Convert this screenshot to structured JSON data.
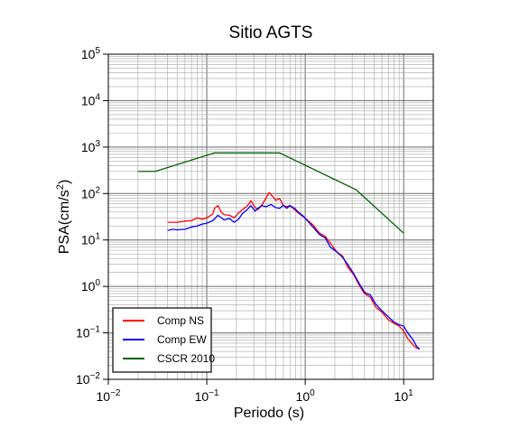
{
  "chart_data": {
    "type": "line",
    "title": "Sitio AGTS",
    "xlabel": "Periodo (s)",
    "ylabel_base": "PSA(cm/s",
    "ylabel_exp": "2",
    "ylabel_close": ")",
    "xscale": "log",
    "yscale": "log",
    "xlim": [
      0.01,
      20
    ],
    "ylim": [
      0.01,
      100000
    ],
    "grid": true,
    "legend_position": "bottom-left",
    "x_ticks": [
      {
        "base": "10",
        "exp": "−2",
        "value": 0.01
      },
      {
        "base": "10",
        "exp": "−1",
        "value": 0.1
      },
      {
        "base": "10",
        "exp": "0",
        "value": 1
      },
      {
        "base": "10",
        "exp": "1",
        "value": 10
      }
    ],
    "y_ticks": [
      {
        "base": "10",
        "exp": "−2",
        "value": 0.01
      },
      {
        "base": "10",
        "exp": "−1",
        "value": 0.1
      },
      {
        "base": "10",
        "exp": "0",
        "value": 1
      },
      {
        "base": "10",
        "exp": "1",
        "value": 10
      },
      {
        "base": "10",
        "exp": "2",
        "value": 100
      },
      {
        "base": "10",
        "exp": "3",
        "value": 1000
      },
      {
        "base": "10",
        "exp": "4",
        "value": 10000
      },
      {
        "base": "10",
        "exp": "5",
        "value": 100000
      }
    ],
    "series": [
      {
        "name": "Comp NS",
        "color": "#ff0000",
        "points": [
          [
            0.04,
            24
          ],
          [
            0.05,
            24
          ],
          [
            0.06,
            25.5
          ],
          [
            0.07,
            26
          ],
          [
            0.08,
            30
          ],
          [
            0.09,
            28
          ],
          [
            0.1,
            30
          ],
          [
            0.115,
            36
          ],
          [
            0.12,
            48
          ],
          [
            0.13,
            55
          ],
          [
            0.14,
            40
          ],
          [
            0.15,
            35
          ],
          [
            0.17,
            34
          ],
          [
            0.19,
            30
          ],
          [
            0.21,
            38
          ],
          [
            0.23,
            45
          ],
          [
            0.26,
            55
          ],
          [
            0.28,
            70
          ],
          [
            0.31,
            50
          ],
          [
            0.33,
            45
          ],
          [
            0.36,
            55
          ],
          [
            0.4,
            80
          ],
          [
            0.43,
            105
          ],
          [
            0.46,
            90
          ],
          [
            0.5,
            72
          ],
          [
            0.55,
            78
          ],
          [
            0.6,
            55
          ],
          [
            0.65,
            52
          ],
          [
            0.7,
            55
          ],
          [
            0.78,
            45
          ],
          [
            0.85,
            38
          ],
          [
            0.95,
            32
          ],
          [
            1.05,
            27
          ],
          [
            1.2,
            21
          ],
          [
            1.4,
            14
          ],
          [
            1.6,
            12
          ],
          [
            1.8,
            8.5
          ],
          [
            2.1,
            5.5
          ],
          [
            2.4,
            4.5
          ],
          [
            2.7,
            2.6
          ],
          [
            3.1,
            1.8
          ],
          [
            3.5,
            1.1
          ],
          [
            4.0,
            0.7
          ],
          [
            4.6,
            0.58
          ],
          [
            5.2,
            0.36
          ],
          [
            6.0,
            0.28
          ],
          [
            7.0,
            0.19
          ],
          [
            8.0,
            0.16
          ],
          [
            9.0,
            0.14
          ],
          [
            10.0,
            0.11
          ],
          [
            11.0,
            0.075
          ],
          [
            12.5,
            0.055
          ],
          [
            13.5,
            0.047
          ],
          [
            14.5,
            0.045
          ]
        ]
      },
      {
        "name": "Comp EW",
        "color": "#0000ff",
        "points": [
          [
            0.04,
            16
          ],
          [
            0.045,
            17
          ],
          [
            0.05,
            16.5
          ],
          [
            0.06,
            17
          ],
          [
            0.07,
            19
          ],
          [
            0.08,
            20
          ],
          [
            0.09,
            22
          ],
          [
            0.1,
            23
          ],
          [
            0.115,
            26
          ],
          [
            0.13,
            34
          ],
          [
            0.15,
            27
          ],
          [
            0.17,
            29
          ],
          [
            0.19,
            24
          ],
          [
            0.21,
            28
          ],
          [
            0.23,
            37
          ],
          [
            0.26,
            46
          ],
          [
            0.28,
            55
          ],
          [
            0.31,
            42
          ],
          [
            0.33,
            48
          ],
          [
            0.36,
            55
          ],
          [
            0.4,
            52
          ],
          [
            0.45,
            58
          ],
          [
            0.5,
            50
          ],
          [
            0.55,
            48
          ],
          [
            0.6,
            56
          ],
          [
            0.65,
            48
          ],
          [
            0.7,
            55
          ],
          [
            0.78,
            48
          ],
          [
            0.85,
            40
          ],
          [
            0.95,
            33
          ],
          [
            1.05,
            26
          ],
          [
            1.2,
            19
          ],
          [
            1.4,
            13
          ],
          [
            1.6,
            11
          ],
          [
            1.8,
            7
          ],
          [
            2.1,
            5.5
          ],
          [
            2.4,
            4.2
          ],
          [
            2.7,
            3.0
          ],
          [
            3.1,
            1.9
          ],
          [
            3.5,
            1.2
          ],
          [
            4.0,
            0.75
          ],
          [
            4.6,
            0.65
          ],
          [
            5.2,
            0.42
          ],
          [
            6.0,
            0.3
          ],
          [
            7.0,
            0.22
          ],
          [
            8.0,
            0.17
          ],
          [
            9.0,
            0.15
          ],
          [
            10.0,
            0.14
          ],
          [
            11.0,
            0.1
          ],
          [
            12.5,
            0.07
          ],
          [
            13.5,
            0.052
          ],
          [
            14.5,
            0.044
          ]
        ]
      },
      {
        "name": "CSCR 2010",
        "color": "#006400",
        "points": [
          [
            0.02,
            300
          ],
          [
            0.03,
            300
          ],
          [
            0.12,
            750
          ],
          [
            0.55,
            750
          ],
          [
            3.3,
            120
          ],
          [
            10.0,
            14
          ]
        ]
      }
    ]
  }
}
